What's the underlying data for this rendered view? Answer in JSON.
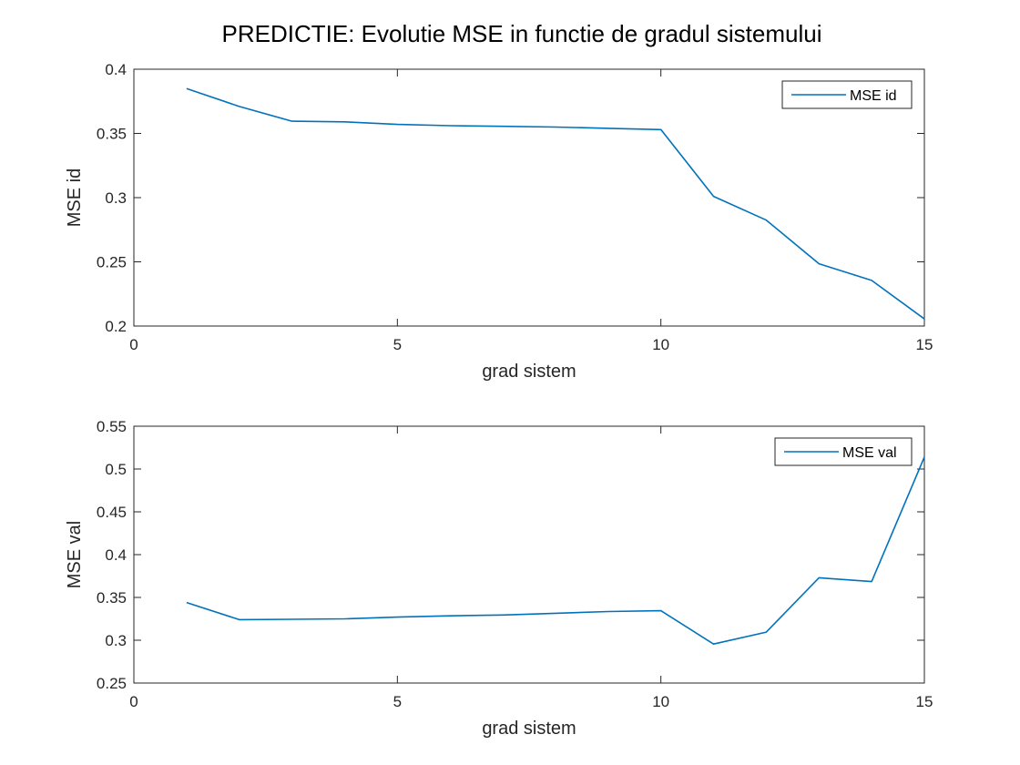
{
  "figure": {
    "title": "PREDICTIE: Evolutie MSE in functie de gradul sistemului"
  },
  "colors": {
    "series": "#0072BD",
    "axis": "#262626"
  },
  "chart_data": [
    {
      "type": "line",
      "xlabel": "grad sistem",
      "ylabel": "MSE id",
      "xlim": [
        0,
        15
      ],
      "ylim": [
        0.2,
        0.4
      ],
      "xticks": [
        0,
        5,
        10,
        15
      ],
      "xtick_labels": [
        "0",
        "5",
        "10",
        "15"
      ],
      "yticks": [
        0.2,
        0.25,
        0.3,
        0.35,
        0.4
      ],
      "ytick_labels": [
        "0.2",
        "0.25",
        "0.3",
        "0.35",
        "0.4"
      ],
      "grid": false,
      "legend_position": "top-right",
      "series": [
        {
          "name": "MSE id",
          "x": [
            1,
            2,
            3,
            4,
            5,
            6,
            7,
            8,
            9,
            10,
            11,
            12,
            13,
            14,
            15
          ],
          "values": [
            0.385,
            0.371,
            0.3595,
            0.359,
            0.357,
            0.356,
            0.3555,
            0.355,
            0.354,
            0.353,
            0.301,
            0.2825,
            0.2485,
            0.2355,
            0.2055
          ]
        }
      ]
    },
    {
      "type": "line",
      "xlabel": "grad sistem",
      "ylabel": "MSE val",
      "xlim": [
        0,
        15
      ],
      "ylim": [
        0.25,
        0.55
      ],
      "xticks": [
        0,
        5,
        10,
        15
      ],
      "xtick_labels": [
        "0",
        "5",
        "10",
        "15"
      ],
      "yticks": [
        0.25,
        0.3,
        0.35,
        0.4,
        0.45,
        0.5,
        0.55
      ],
      "ytick_labels": [
        "0.25",
        "0.3",
        "0.35",
        "0.4",
        "0.45",
        "0.5",
        "0.55"
      ],
      "grid": false,
      "legend_position": "top-right",
      "series": [
        {
          "name": "MSE val",
          "x": [
            1,
            2,
            3,
            4,
            5,
            6,
            7,
            8,
            9,
            10,
            11,
            12,
            13,
            14,
            15
          ],
          "values": [
            0.344,
            0.324,
            0.3245,
            0.325,
            0.327,
            0.3285,
            0.3295,
            0.3315,
            0.3335,
            0.3345,
            0.2955,
            0.3095,
            0.373,
            0.3685,
            0.514
          ]
        }
      ]
    }
  ]
}
